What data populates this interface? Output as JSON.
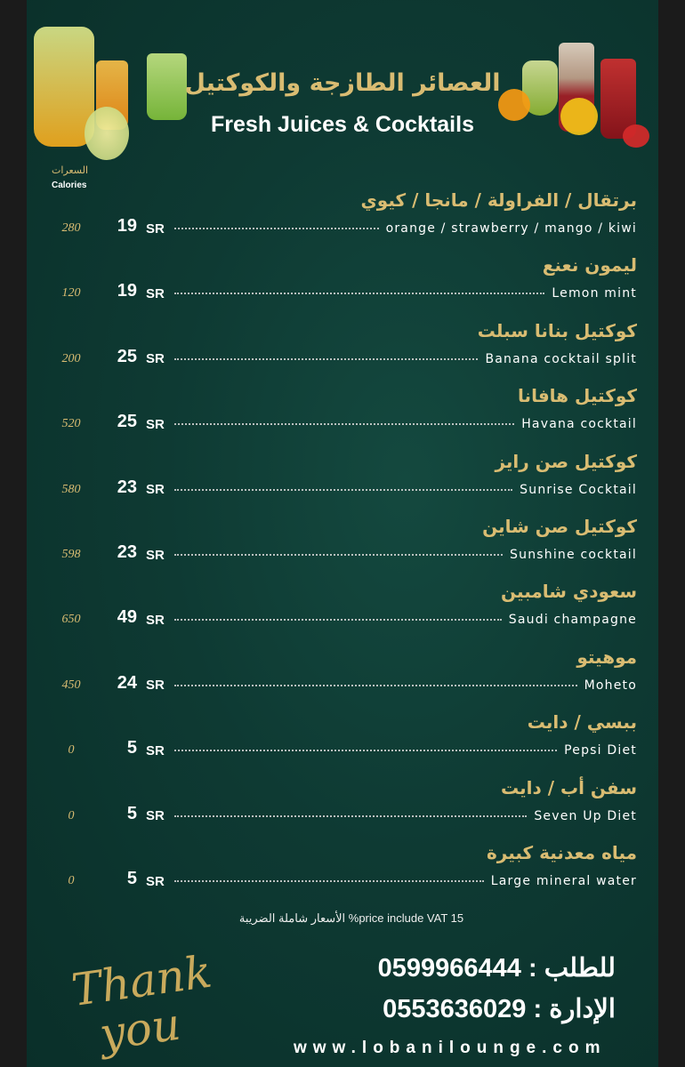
{
  "header": {
    "title_ar": "العصائر الطازجة والكوكتيل",
    "title_en": "Fresh Juices & Cocktails",
    "calories_ar": "السعرات",
    "calories_en": "Calories"
  },
  "currency": "SR",
  "items": [
    {
      "ar": "برتقال / الفراولة / مانجا / كيوي",
      "en": "orange / strawberry / mango / kiwi",
      "price": "19",
      "calories": "280"
    },
    {
      "ar": "ليمون نعنع",
      "en": "Lemon mint",
      "price": "19",
      "calories": "120"
    },
    {
      "ar": "كوكتيل بنانا سبلت",
      "en": "Banana cocktail split",
      "price": "25",
      "calories": "200"
    },
    {
      "ar": "كوكتيل هافانا",
      "en": "Havana cocktail",
      "price": "25",
      "calories": "520"
    },
    {
      "ar": "كوكتيل صن رايز",
      "en": "Sunrise Cocktail",
      "price": "23",
      "calories": "580"
    },
    {
      "ar": "كوكتيل صن شاين",
      "en": "Sunshine cocktail",
      "price": "23",
      "calories": "598"
    },
    {
      "ar": "سعودي  شامبين",
      "en": "Saudi champagne",
      "price": "49",
      "calories": "650"
    },
    {
      "ar": "موهيتو",
      "en": "Moheto",
      "price": "24",
      "calories": "450"
    },
    {
      "ar": "ببسي / دايت",
      "en": "Pepsi Diet",
      "price": "5",
      "calories": "0"
    },
    {
      "ar": "سفن أب  / دايت",
      "en": "Seven Up Diet",
      "price": "5",
      "calories": "0"
    },
    {
      "ar": "مياه معدنية كبيرة",
      "en": "Large mineral water",
      "price": "5",
      "calories": "0"
    }
  ],
  "footer": {
    "vat": "الأسعار شاملة  الضريبة %price include VAT 15",
    "order_line": "للطلب : 0599966444",
    "admin_line": "الإدارة : 0553636029",
    "website": "www.lobanilounge.com",
    "thank_you": "Thank You"
  },
  "colors": {
    "background": "#0e3a33",
    "gold": "#d9bc72",
    "side": "#1b1b1b"
  }
}
